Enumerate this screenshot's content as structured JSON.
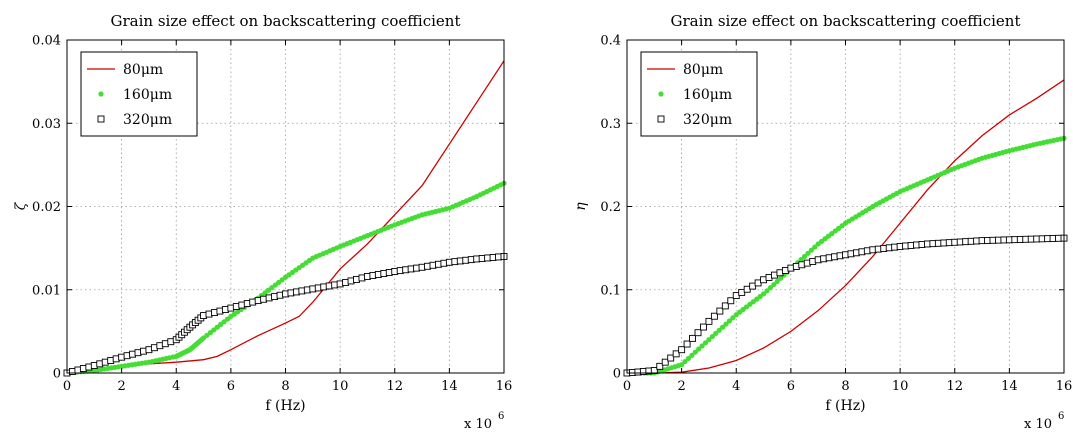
{
  "chart_data": [
    {
      "type": "line",
      "title": "Grain size effect on backscattering coefficient",
      "xlabel": "f (Hz)",
      "ylabel": "ζ",
      "x_multiplier": "x 10",
      "x_multiplier_exp": "6",
      "xlim": [
        0,
        16
      ],
      "ylim": [
        0,
        0.04
      ],
      "xticks": [
        0,
        2,
        4,
        6,
        8,
        10,
        12,
        14,
        16
      ],
      "yticks": [
        0,
        0.01,
        0.02,
        0.03,
        0.04
      ],
      "xtick_labels": [
        "0",
        "2",
        "4",
        "6",
        "8",
        "10",
        "12",
        "14",
        "16"
      ],
      "ytick_labels": [
        "0",
        "0.01",
        "0.02",
        "0.03",
        "0.04"
      ],
      "grid": true,
      "legend_position": "top-left",
      "series": [
        {
          "name": "80μm",
          "marker": "line",
          "color": "#cc0000",
          "x": [
            0,
            1,
            2,
            3,
            4,
            5,
            5.5,
            6,
            7,
            8,
            8.5,
            9,
            10,
            11,
            12,
            13,
            14,
            15,
            16
          ],
          "y": [
            0,
            0.0003,
            0.0008,
            0.0011,
            0.0013,
            0.0016,
            0.002,
            0.0028,
            0.0045,
            0.006,
            0.0068,
            0.0085,
            0.0125,
            0.0155,
            0.019,
            0.0225,
            0.0275,
            0.0325,
            0.0375
          ]
        },
        {
          "name": "160μm",
          "marker": "dot",
          "color": "#44dd33",
          "x": [
            0,
            1,
            2,
            3,
            4,
            4.5,
            5,
            6,
            7,
            8,
            9,
            10,
            11,
            12,
            13,
            14,
            15,
            16
          ],
          "y": [
            0,
            0.0003,
            0.0008,
            0.0013,
            0.002,
            0.0028,
            0.0042,
            0.0068,
            0.009,
            0.0115,
            0.0138,
            0.0152,
            0.0165,
            0.0178,
            0.019,
            0.0198,
            0.0212,
            0.0228
          ]
        },
        {
          "name": "320μm",
          "marker": "square",
          "color": "#000000",
          "x": [
            0,
            1,
            2,
            3,
            4,
            4.5,
            5,
            6,
            7,
            8,
            9,
            10,
            11,
            12,
            13,
            14,
            15,
            16
          ],
          "y": [
            0,
            0.0009,
            0.0019,
            0.0028,
            0.004,
            0.0055,
            0.0069,
            0.0078,
            0.0087,
            0.0095,
            0.0101,
            0.0107,
            0.0116,
            0.0122,
            0.0127,
            0.0133,
            0.0137,
            0.014
          ]
        }
      ]
    },
    {
      "type": "line",
      "title": "Grain size effect on backscattering coefficient",
      "xlabel": "f (Hz)",
      "ylabel": "η",
      "x_multiplier": "x 10",
      "x_multiplier_exp": "6",
      "xlim": [
        0,
        16
      ],
      "ylim": [
        0,
        0.4
      ],
      "xticks": [
        0,
        2,
        4,
        6,
        8,
        10,
        12,
        14,
        16
      ],
      "yticks": [
        0,
        0.1,
        0.2,
        0.3,
        0.4
      ],
      "xtick_labels": [
        "0",
        "2",
        "4",
        "6",
        "8",
        "10",
        "12",
        "14",
        "16"
      ],
      "ytick_labels": [
        "0",
        "0.1",
        "0.2",
        "0.3",
        "0.4"
      ],
      "grid": true,
      "legend_position": "top-left",
      "series": [
        {
          "name": "80μm",
          "marker": "line",
          "color": "#cc0000",
          "x": [
            0,
            1,
            2,
            3,
            4,
            5,
            6,
            7,
            8,
            9,
            10,
            11,
            12,
            13,
            14,
            15,
            16
          ],
          "y": [
            0,
            0,
            0.001,
            0.006,
            0.015,
            0.03,
            0.05,
            0.075,
            0.105,
            0.14,
            0.18,
            0.22,
            0.255,
            0.285,
            0.31,
            0.33,
            0.352
          ]
        },
        {
          "name": "160μm",
          "marker": "dot",
          "color": "#44dd33",
          "x": [
            0,
            1,
            2,
            3,
            4,
            5,
            6,
            7,
            8,
            9,
            10,
            11,
            12,
            13,
            14,
            15,
            16
          ],
          "y": [
            0,
            0,
            0.01,
            0.04,
            0.07,
            0.095,
            0.125,
            0.155,
            0.18,
            0.2,
            0.218,
            0.232,
            0.246,
            0.258,
            0.267,
            0.275,
            0.282
          ]
        },
        {
          "name": "320μm",
          "marker": "square",
          "color": "#000000",
          "x": [
            0,
            1,
            2,
            3,
            4,
            5,
            6,
            7,
            8,
            9,
            10,
            11,
            12,
            13,
            14,
            15,
            16
          ],
          "y": [
            0,
            0.003,
            0.028,
            0.062,
            0.093,
            0.112,
            0.126,
            0.136,
            0.142,
            0.148,
            0.152,
            0.155,
            0.157,
            0.159,
            0.16,
            0.161,
            0.162
          ]
        }
      ]
    }
  ]
}
